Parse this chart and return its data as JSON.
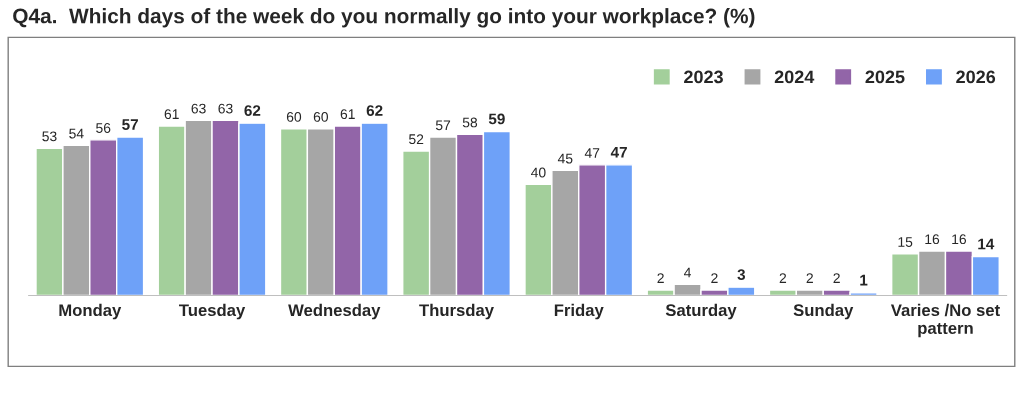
{
  "chart_data": {
    "type": "bar",
    "title": "Q4a.  Which days of the week do you normally go into your workplace? (%)",
    "categories": [
      "Monday",
      "Tuesday",
      "Wednesday",
      "Thursday",
      "Friday",
      "Saturday",
      "Sunday",
      "Varies /No set pattern"
    ],
    "series": [
      {
        "name": "2023",
        "color": "#a3cf9b",
        "values": [
          53,
          61,
          60,
          52,
          40,
          2,
          2,
          15
        ]
      },
      {
        "name": "2024",
        "color": "#a6a6a6",
        "values": [
          54,
          63,
          60,
          57,
          45,
          4,
          2,
          16
        ]
      },
      {
        "name": "2025",
        "color": "#9265a8",
        "values": [
          56,
          63,
          61,
          58,
          47,
          2,
          2,
          16
        ]
      },
      {
        "name": "2026",
        "color": "#6ea1f8",
        "values": [
          57,
          62,
          62,
          59,
          47,
          3,
          1,
          14
        ]
      }
    ],
    "data_labels": true,
    "legend": "top right",
    "grid": false
  }
}
